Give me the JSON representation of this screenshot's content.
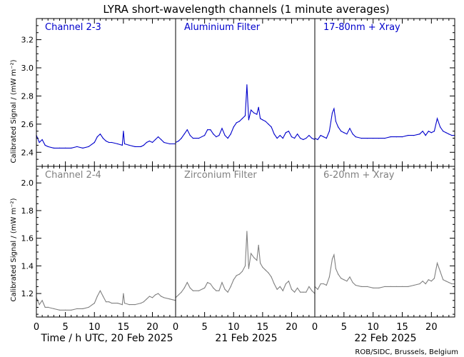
{
  "title": "LYRA short-wavelength channels (1 minute averages)",
  "ylabel": "Calibrated Signal / (mW m⁻²)",
  "colors": {
    "top": "#0000cc",
    "bottom": "#808080",
    "axis": "#000000",
    "title": "#000000"
  },
  "day_labels": [
    "Time / h UTC, 20 Feb 2025",
    "21 Feb 2025",
    "22 Feb 2025"
  ],
  "credit": "ROB/SIDC, Brussels, Belgium",
  "chart_data": [
    {
      "type": "line",
      "row": "top",
      "x_unit": "hours UTC",
      "ylim": [
        2.3,
        3.35
      ],
      "yticks": [
        2.4,
        2.6,
        2.8,
        3.0,
        3.2
      ],
      "ytick_labels": [
        "2.4",
        "2.6",
        "2.8",
        "3.0",
        "3.2"
      ],
      "xticks": [
        0,
        5,
        10,
        15,
        20
      ],
      "panels": [
        {
          "label": "Channel 2-3",
          "xlim": [
            0,
            24
          ],
          "series": [
            {
              "x": [
                0,
                0.5,
                1,
                1.5,
                2,
                3,
                4,
                5,
                6,
                7,
                8,
                9,
                10,
                10.5,
                11,
                11.5,
                12,
                12.5,
                13,
                14,
                14.8,
                15,
                15.2,
                16,
                17,
                18,
                18.5,
                19,
                19.5,
                20,
                20.5,
                21,
                21.5,
                22,
                23,
                24
              ],
              "y": [
                2.52,
                2.47,
                2.49,
                2.45,
                2.44,
                2.43,
                2.43,
                2.43,
                2.43,
                2.44,
                2.43,
                2.44,
                2.47,
                2.51,
                2.53,
                2.5,
                2.48,
                2.47,
                2.47,
                2.46,
                2.45,
                2.55,
                2.46,
                2.45,
                2.44,
                2.44,
                2.45,
                2.47,
                2.48,
                2.47,
                2.49,
                2.51,
                2.49,
                2.47,
                2.46,
                2.46
              ]
            }
          ]
        },
        {
          "label": "Aluminium Filter",
          "xlim": [
            0,
            24
          ],
          "series": [
            {
              "x": [
                0,
                0.5,
                1,
                1.5,
                2,
                2.5,
                3,
                4,
                5,
                5.5,
                6,
                6.5,
                7,
                7.5,
                8,
                8.5,
                9,
                9.5,
                10,
                10.5,
                11,
                11.5,
                12,
                12.3,
                12.6,
                13,
                13.5,
                14,
                14.3,
                14.6,
                15,
                15.5,
                16,
                16.5,
                17,
                17.5,
                18,
                18.5,
                19,
                19.5,
                20,
                20.5,
                21,
                21.5,
                22,
                22.5,
                23,
                23.5,
                24
              ],
              "y": [
                2.47,
                2.48,
                2.5,
                2.53,
                2.56,
                2.52,
                2.5,
                2.5,
                2.52,
                2.56,
                2.56,
                2.53,
                2.51,
                2.52,
                2.57,
                2.52,
                2.5,
                2.53,
                2.58,
                2.61,
                2.62,
                2.64,
                2.66,
                2.88,
                2.63,
                2.7,
                2.68,
                2.67,
                2.72,
                2.64,
                2.63,
                2.62,
                2.6,
                2.58,
                2.53,
                2.5,
                2.52,
                2.5,
                2.54,
                2.55,
                2.51,
                2.5,
                2.53,
                2.5,
                2.49,
                2.5,
                2.52,
                2.5,
                2.49
              ]
            }
          ]
        },
        {
          "label": "17-80nm + Xray",
          "xlim": [
            0,
            24
          ],
          "series": [
            {
              "x": [
                0,
                0.5,
                1,
                1.5,
                2,
                2.5,
                3,
                3.3,
                3.6,
                4,
                4.5,
                5,
                5.5,
                6,
                6.5,
                7,
                8,
                9,
                10,
                11,
                12,
                13,
                14,
                15,
                16,
                17,
                18,
                18.5,
                19,
                19.5,
                20,
                20.5,
                21,
                21.5,
                22,
                22.5,
                23,
                23.5,
                24
              ],
              "y": [
                2.5,
                2.49,
                2.52,
                2.51,
                2.5,
                2.55,
                2.68,
                2.71,
                2.62,
                2.58,
                2.55,
                2.54,
                2.53,
                2.57,
                2.53,
                2.51,
                2.5,
                2.5,
                2.5,
                2.5,
                2.5,
                2.51,
                2.51,
                2.51,
                2.52,
                2.52,
                2.53,
                2.55,
                2.52,
                2.55,
                2.54,
                2.55,
                2.64,
                2.58,
                2.55,
                2.54,
                2.53,
                2.52,
                2.52
              ]
            }
          ]
        }
      ]
    },
    {
      "type": "line",
      "row": "bottom",
      "x_unit": "hours UTC",
      "ylim": [
        1.03,
        2.12
      ],
      "yticks": [
        1.2,
        1.4,
        1.6,
        1.8,
        2.0
      ],
      "ytick_labels": [
        "1.2",
        "1.4",
        "1.6",
        "1.8",
        "2.0"
      ],
      "xticks": [
        0,
        5,
        10,
        15,
        20
      ],
      "panels": [
        {
          "label": "Channel 2-4",
          "xlim": [
            0,
            24
          ],
          "series": [
            {
              "x": [
                0,
                0.5,
                1,
                1.5,
                2,
                3,
                4,
                5,
                6,
                7,
                8,
                9,
                10,
                10.5,
                11,
                11.5,
                12,
                12.5,
                13,
                14,
                14.8,
                15,
                15.2,
                16,
                17,
                18,
                18.5,
                19,
                19.5,
                20,
                20.5,
                21,
                21.5,
                22,
                23,
                24
              ],
              "y": [
                1.17,
                1.12,
                1.15,
                1.1,
                1.1,
                1.09,
                1.08,
                1.08,
                1.08,
                1.09,
                1.09,
                1.1,
                1.13,
                1.18,
                1.22,
                1.18,
                1.14,
                1.14,
                1.13,
                1.13,
                1.12,
                1.2,
                1.13,
                1.12,
                1.12,
                1.13,
                1.14,
                1.16,
                1.18,
                1.17,
                1.19,
                1.2,
                1.18,
                1.17,
                1.16,
                1.15
              ]
            }
          ]
        },
        {
          "label": "Zirconium Filter",
          "xlim": [
            0,
            24
          ],
          "series": [
            {
              "x": [
                0,
                0.5,
                1,
                1.5,
                2,
                2.5,
                3,
                4,
                5,
                5.5,
                6,
                6.5,
                7,
                7.5,
                8,
                8.5,
                9,
                9.5,
                10,
                10.5,
                11,
                11.5,
                12,
                12.3,
                12.6,
                13,
                13.5,
                14,
                14.3,
                14.6,
                15,
                15.5,
                16,
                16.5,
                17,
                17.5,
                18,
                18.5,
                19,
                19.5,
                20,
                20.5,
                21,
                21.5,
                22,
                22.5,
                23,
                23.5,
                24
              ],
              "y": [
                1.17,
                1.19,
                1.21,
                1.24,
                1.28,
                1.24,
                1.22,
                1.22,
                1.24,
                1.28,
                1.27,
                1.24,
                1.22,
                1.22,
                1.28,
                1.23,
                1.21,
                1.25,
                1.3,
                1.33,
                1.34,
                1.36,
                1.4,
                1.65,
                1.38,
                1.49,
                1.46,
                1.44,
                1.55,
                1.42,
                1.39,
                1.37,
                1.35,
                1.32,
                1.27,
                1.23,
                1.25,
                1.22,
                1.27,
                1.29,
                1.23,
                1.21,
                1.24,
                1.21,
                1.21,
                1.21,
                1.25,
                1.22,
                1.2
              ]
            }
          ]
        },
        {
          "label": "6-20nm + Xray",
          "xlim": [
            0,
            24
          ],
          "series": [
            {
              "x": [
                0,
                0.5,
                1,
                1.5,
                2,
                2.5,
                3,
                3.3,
                3.6,
                4,
                4.5,
                5,
                5.5,
                6,
                6.5,
                7,
                8,
                9,
                10,
                11,
                12,
                13,
                14,
                15,
                16,
                17,
                18,
                18.5,
                19,
                19.5,
                20,
                20.5,
                21,
                21.5,
                22,
                22.5,
                23,
                23.5,
                24
              ],
              "y": [
                1.25,
                1.23,
                1.27,
                1.27,
                1.26,
                1.32,
                1.45,
                1.48,
                1.38,
                1.34,
                1.31,
                1.3,
                1.29,
                1.32,
                1.28,
                1.26,
                1.25,
                1.25,
                1.24,
                1.24,
                1.25,
                1.25,
                1.25,
                1.25,
                1.25,
                1.26,
                1.27,
                1.29,
                1.27,
                1.3,
                1.29,
                1.31,
                1.42,
                1.36,
                1.3,
                1.29,
                1.28,
                1.27,
                1.27
              ]
            }
          ]
        }
      ]
    }
  ]
}
